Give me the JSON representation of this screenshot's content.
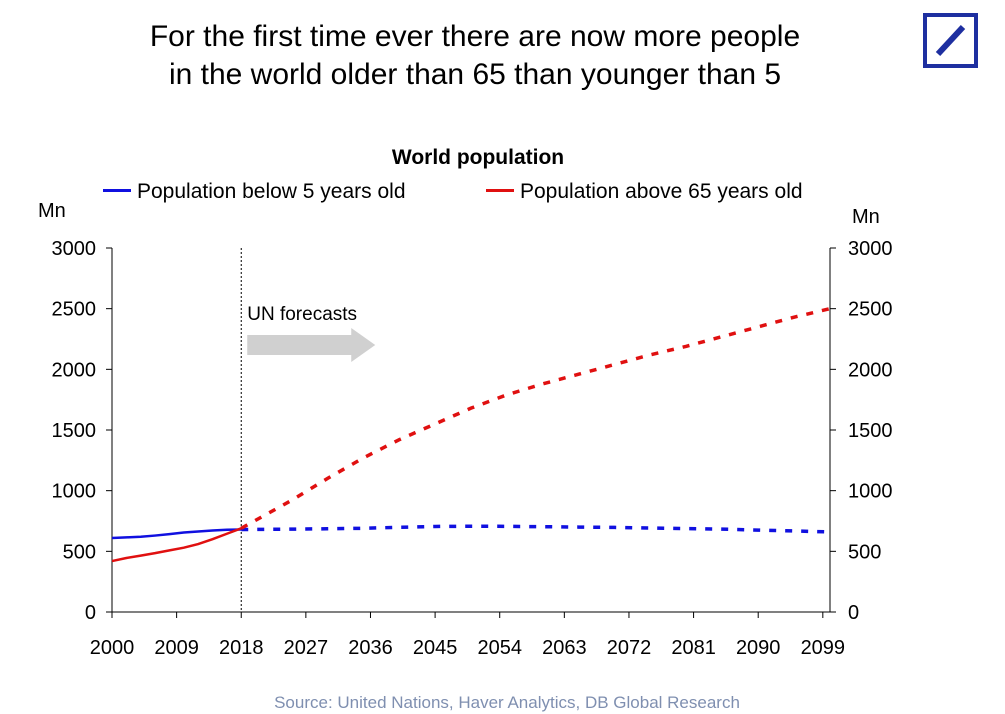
{
  "headline": {
    "line1": "For the first time ever there are now more people",
    "line2": "in the world older than 65 than younger than 5"
  },
  "source": "Source: United Nations, Haver Analytics, DB Global Research",
  "logo_color": "#1e2fa0",
  "chart_data": {
    "type": "line",
    "title": "World population",
    "ylabel_left": "Mn",
    "ylabel_right": "Mn",
    "ylim": [
      0,
      3000
    ],
    "yticks": [
      0,
      500,
      1000,
      1500,
      2000,
      2500,
      3000
    ],
    "xlim": [
      2000,
      2100
    ],
    "xticks": [
      2000,
      2009,
      2018,
      2027,
      2036,
      2045,
      2054,
      2063,
      2072,
      2081,
      2090,
      2099
    ],
    "grid": false,
    "legend_position": "top",
    "forecast_start": 2018,
    "annotation": "UN forecasts",
    "series": [
      {
        "name": "Population below 5 years old",
        "color": "#1010e0",
        "historical": {
          "x": [
            2000,
            2002,
            2004,
            2006,
            2008,
            2010,
            2012,
            2014,
            2016,
            2018
          ],
          "y": [
            610,
            615,
            620,
            630,
            642,
            655,
            663,
            672,
            678,
            680
          ]
        },
        "forecast": {
          "x": [
            2018,
            2025,
            2030,
            2035,
            2040,
            2045,
            2050,
            2055,
            2060,
            2065,
            2070,
            2075,
            2080,
            2085,
            2090,
            2095,
            2100
          ],
          "y": [
            680,
            683,
            686,
            690,
            698,
            705,
            707,
            706,
            703,
            700,
            697,
            692,
            688,
            683,
            675,
            668,
            660
          ]
        }
      },
      {
        "name": "Population above 65 years old",
        "color": "#e01010",
        "historical": {
          "x": [
            2000,
            2002,
            2004,
            2006,
            2008,
            2010,
            2012,
            2014,
            2016,
            2018
          ],
          "y": [
            420,
            445,
            465,
            485,
            508,
            530,
            560,
            600,
            645,
            690
          ]
        },
        "forecast": {
          "x": [
            2018,
            2025,
            2030,
            2035,
            2040,
            2045,
            2050,
            2055,
            2060,
            2065,
            2070,
            2075,
            2080,
            2085,
            2090,
            2095,
            2100
          ],
          "y": [
            690,
            920,
            1100,
            1270,
            1420,
            1550,
            1680,
            1790,
            1880,
            1960,
            2040,
            2120,
            2190,
            2270,
            2350,
            2430,
            2500
          ]
        }
      }
    ]
  }
}
